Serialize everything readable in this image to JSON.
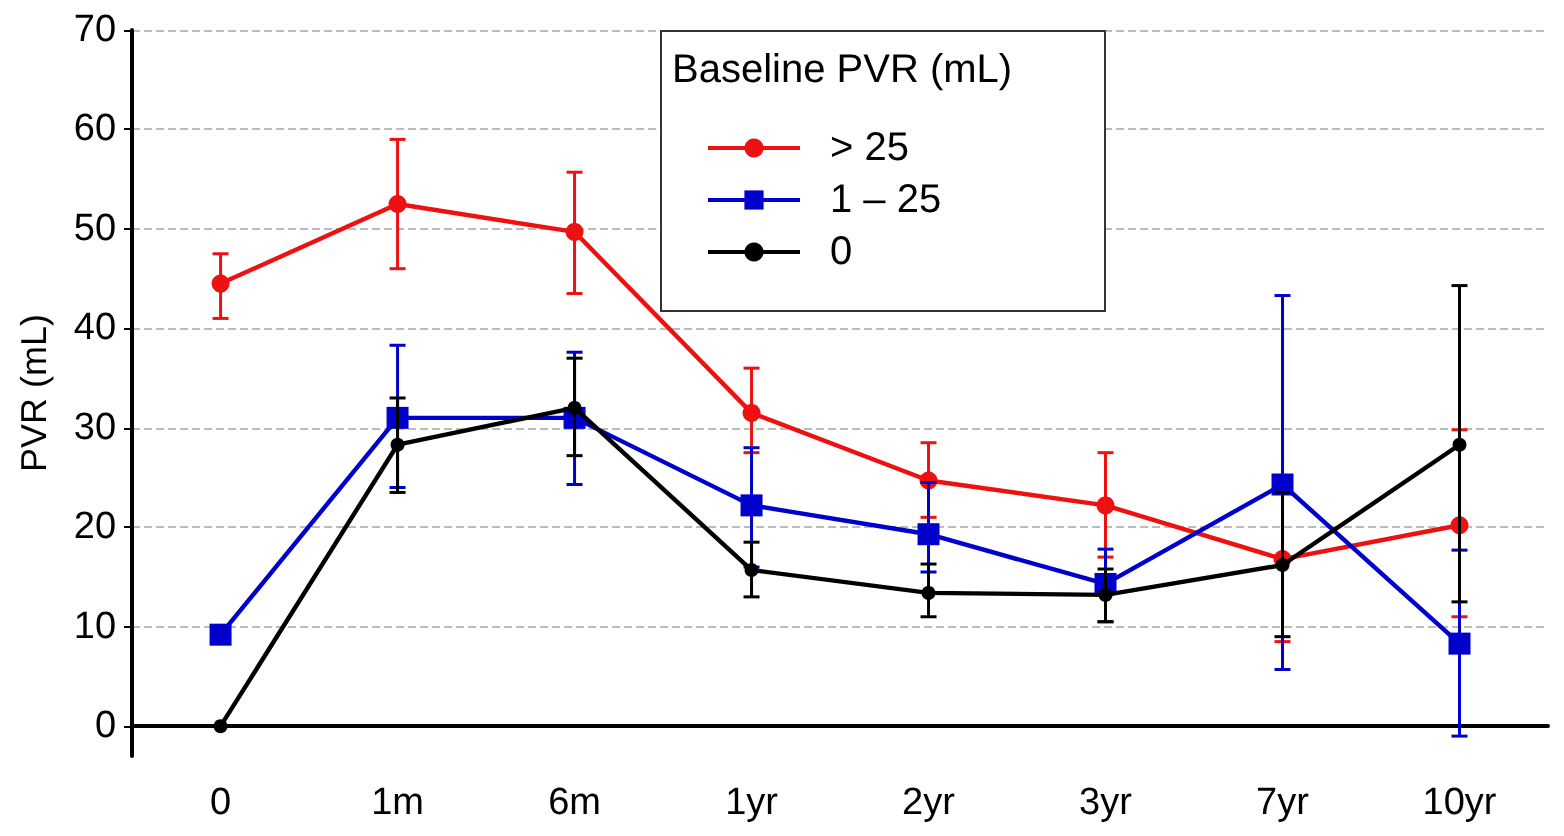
{
  "chart_data": {
    "type": "line",
    "ylabel": "PVR (mL)",
    "legend_title": "Baseline PVR (mL)",
    "legend": "top",
    "grid": "y",
    "line_style": "solid",
    "categories": [
      "0",
      "1m",
      "6m",
      "1yr",
      "2yr",
      "3yr",
      "7yr",
      "10yr"
    ],
    "ylim": [
      -3,
      70
    ],
    "yticks": [
      0,
      10,
      20,
      30,
      40,
      50,
      60,
      70
    ],
    "series": [
      {
        "name": "> 25",
        "color": "#ee1111",
        "marker": "circle",
        "values": [
          44.5,
          52.5,
          49.7,
          31.5,
          24.7,
          22.2,
          16.8,
          20.2
        ],
        "errors": [
          [
            41,
            47.5
          ],
          [
            46,
            59
          ],
          [
            43.5,
            55.7
          ],
          [
            27.5,
            36
          ],
          [
            21,
            28.5
          ],
          [
            17,
            27.5
          ],
          [
            8.5,
            25
          ],
          [
            11,
            29.8
          ]
        ]
      },
      {
        "name": "1 – 25",
        "color": "#0000cc",
        "marker": "square",
        "values": [
          9.2,
          31,
          31,
          22.2,
          19.3,
          14.3,
          24.3,
          8.3
        ],
        "errors": [
          null,
          [
            24,
            38.3
          ],
          [
            24.3,
            37.6
          ],
          [
            16,
            28
          ],
          [
            15.5,
            24.5
          ],
          [
            10.5,
            17.8
          ],
          [
            5.7,
            43.3
          ],
          [
            -1,
            17.7
          ]
        ]
      },
      {
        "name": "0",
        "color": "#000000",
        "marker": "circle_small",
        "values": [
          0,
          28.3,
          32,
          15.7,
          13.4,
          13.2,
          16.2,
          28.3
        ],
        "errors": [
          null,
          [
            23.5,
            33
          ],
          [
            27.2,
            37
          ],
          [
            13,
            18.5
          ],
          [
            11,
            16.3
          ],
          [
            10.5,
            15.8
          ],
          [
            9,
            23.5
          ],
          [
            12.5,
            44.3
          ]
        ]
      }
    ]
  }
}
